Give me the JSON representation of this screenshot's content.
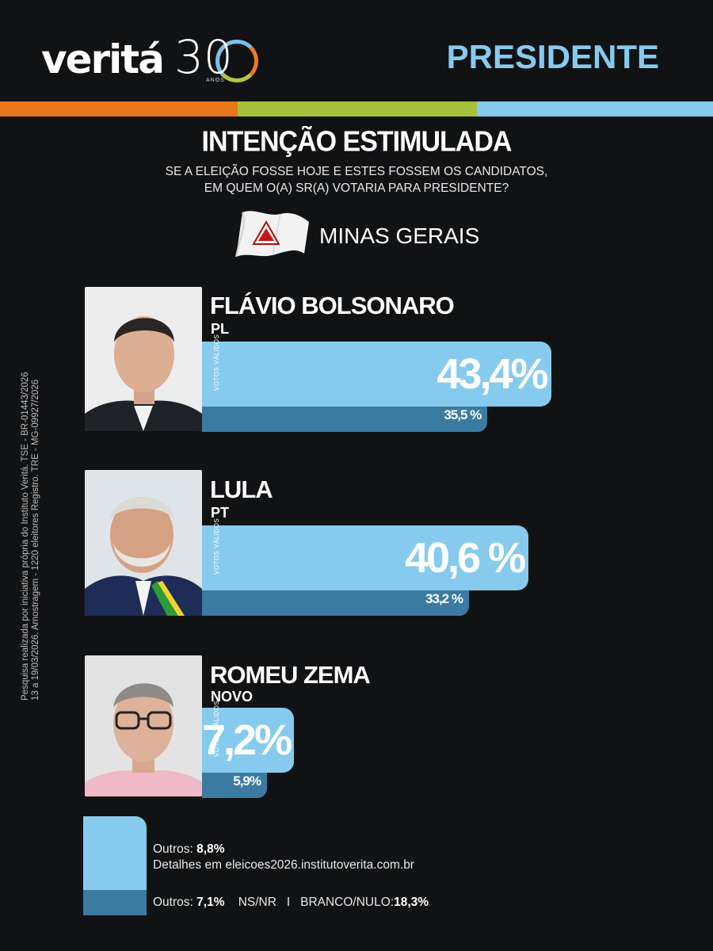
{
  "brand": {
    "logo_word": "veritá",
    "logo_number": "30",
    "logo_sub": "ANOS"
  },
  "header": {
    "section": "PRESIDENTE"
  },
  "colors": {
    "orange": "#e8771e",
    "green": "#a7c13b",
    "blue": "#86cbee",
    "dark_blue": "#3b7ba1",
    "background": "#111214"
  },
  "poll": {
    "title": "INTENÇÃO ESTIMULADA",
    "question_line1": "SE A ELEIÇÃO FOSSE HOJE E ESTES FOSSEM OS CANDIDATOS,",
    "question_line2": "EM QUEM O(A) SR(A) VOTARIA PARA PRESIDENTE?",
    "region": "MINAS GERAIS",
    "flag_icon": "minas-gerais-flag-icon"
  },
  "chart_data": {
    "type": "bar",
    "categories": [
      "FLÁVIO BOLSONARO",
      "LULA",
      "ROMEU ZEMA"
    ],
    "parties": [
      "PL",
      "PT",
      "NOVO"
    ],
    "series": [
      {
        "name": "VOTOS VÁLIDOS",
        "values": [
          43.4,
          40.6,
          7.2
        ]
      },
      {
        "name": "",
        "values": [
          35.5,
          33.2,
          5.9
        ]
      }
    ],
    "value_labels_main": [
      "43,4%",
      "40,6 %",
      "7,2%"
    ],
    "value_labels_total": [
      "35,5 %",
      "33,2 %",
      "5,9%"
    ],
    "axis_label": "VOTOS VÁLIDOS",
    "ylim": [
      0,
      50
    ]
  },
  "others": {
    "valid_label": "Outros:",
    "valid_value": "8,8%",
    "details": "Detalhes em eleicoes2026.institutoverita.com.br",
    "total_label": "Outros:",
    "total_value": "7,1%",
    "nsnr": "NS/NR",
    "separator": "I",
    "blank_label": "BRANCO/NULO:",
    "blank_value": "18,3%"
  },
  "methodology": {
    "line1": "Pesquisa realizada por iniciativa própria do Instituto Veritá. TSE - BR-01443/2026",
    "line2": "13 a 19/03/2026. Amostragem - 1220 eleitores Registro. TRE - MG-09927/2026"
  }
}
